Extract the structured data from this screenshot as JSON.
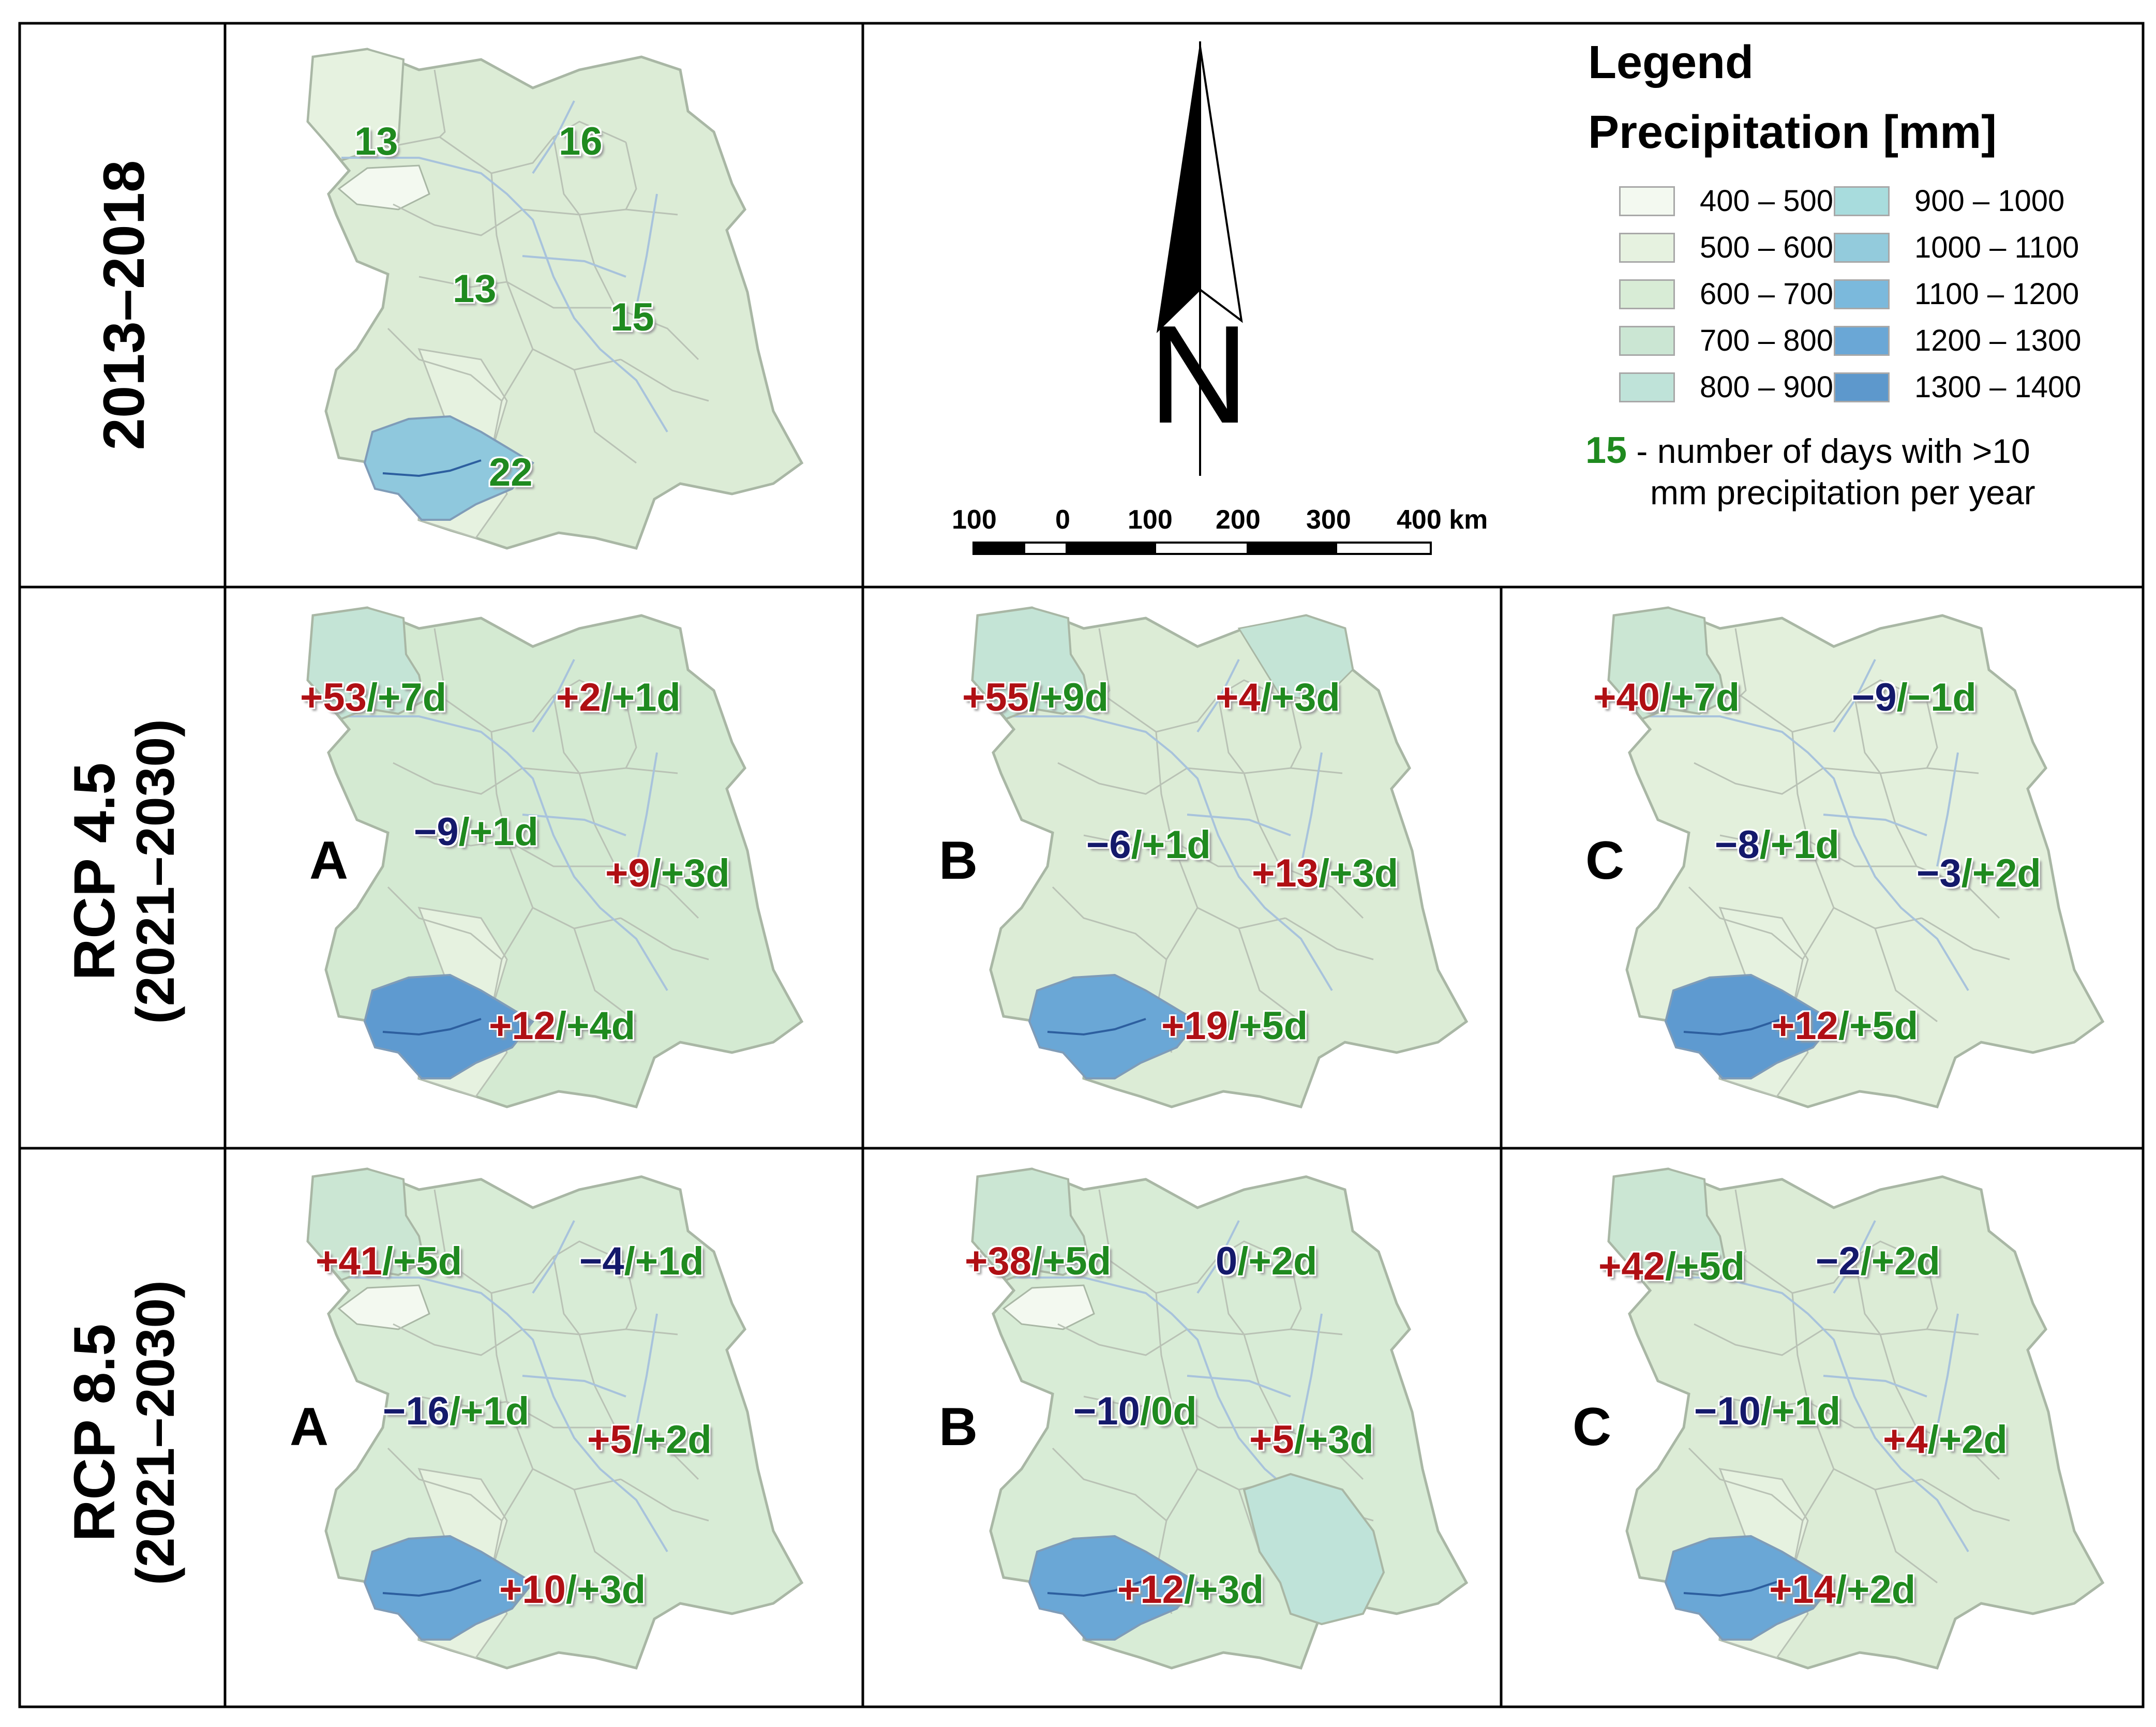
{
  "rows": [
    {
      "label": "2013–2018"
    },
    {
      "label": "RCP 4.5",
      "sublabel": "(2021–2030)"
    },
    {
      "label": "RCP 8.5",
      "sublabel": "(2021–2030)"
    }
  ],
  "baseline": {
    "days": [
      "13",
      "16",
      "13",
      "15",
      "22"
    ]
  },
  "scenarios": {
    "letters": [
      "A",
      "B",
      "C"
    ],
    "rcp45": [
      {
        "a1": "+53",
        "b1": "+7d",
        "a2": "+2",
        "b2": "+1d",
        "a3": "−9",
        "b3": "+1d",
        "a4": "+9",
        "b4": "+3d",
        "a5": "+12",
        "b5": "+4d"
      },
      {
        "a1": "+55",
        "b1": "+9d",
        "a2": "+4",
        "b2": "+3d",
        "a3": "−6",
        "b3": "+1d",
        "a4": "+13",
        "b4": "+3d",
        "a5": "+19",
        "b5": "+5d"
      },
      {
        "a1": "+40",
        "b1": "+7d",
        "a2": "−9",
        "b2": "−1d",
        "a3": "−8",
        "b3": "+1d",
        "a4": "−3",
        "b4": "+2d",
        "a5": "+12",
        "b5": "+5d"
      }
    ],
    "rcp85": [
      {
        "a1": "+41",
        "b1": "+5d",
        "a2": "−4",
        "b2": "+1d",
        "a3": "−16",
        "b3": "+1d",
        "a4": "+5",
        "b4": "+2d",
        "a5": "+10",
        "b5": "+3d"
      },
      {
        "a1": "+38",
        "b1": "+5d",
        "a2": "0",
        "b2": "+2d",
        "a3": "−10",
        "b3": "0d",
        "a4": "+5",
        "b4": "+3d",
        "a5": "+12",
        "b5": "+3d"
      },
      {
        "a1": "+42",
        "b1": "+5d",
        "a2": "−2",
        "b2": "+2d",
        "a3": "−10",
        "b3": "+1d",
        "a4": "+4",
        "b4": "+2d",
        "a5": "+14",
        "b5": "+2d"
      }
    ]
  },
  "compass": {
    "letter": "N"
  },
  "scale_bar": {
    "labels": [
      "100",
      "0",
      "100",
      "200",
      "300",
      "400 km"
    ]
  },
  "legend": {
    "title": "Legend",
    "subtitle": "Precipitation [mm]",
    "classes": [
      {
        "label": "400 – 500",
        "color": "#f3f9f0"
      },
      {
        "label": "500 – 600",
        "color": "#e6f2e0"
      },
      {
        "label": "600 – 700",
        "color": "#d8ecd6"
      },
      {
        "label": "700 – 800",
        "color": "#cbe6d3"
      },
      {
        "label": "800 – 900",
        "color": "#bfe3d9"
      },
      {
        "label": "900 – 1000",
        "color": "#a8dcdd"
      },
      {
        "label": "1000 – 1100",
        "color": "#93cbdc"
      },
      {
        "label": "1100 – 1200",
        "color": "#7bb9dc"
      },
      {
        "label": "1200 – 1300",
        "color": "#6aa7d6"
      },
      {
        "label": "1300 – 1400",
        "color": "#5d98cc"
      }
    ],
    "note_number": "15",
    "note_text_1": " - number of days with >10",
    "note_text_2": "mm precipitation per year"
  },
  "colors": {
    "increase": "#b00f14",
    "decrease": "#14196b",
    "days": "#1f8a1f"
  }
}
